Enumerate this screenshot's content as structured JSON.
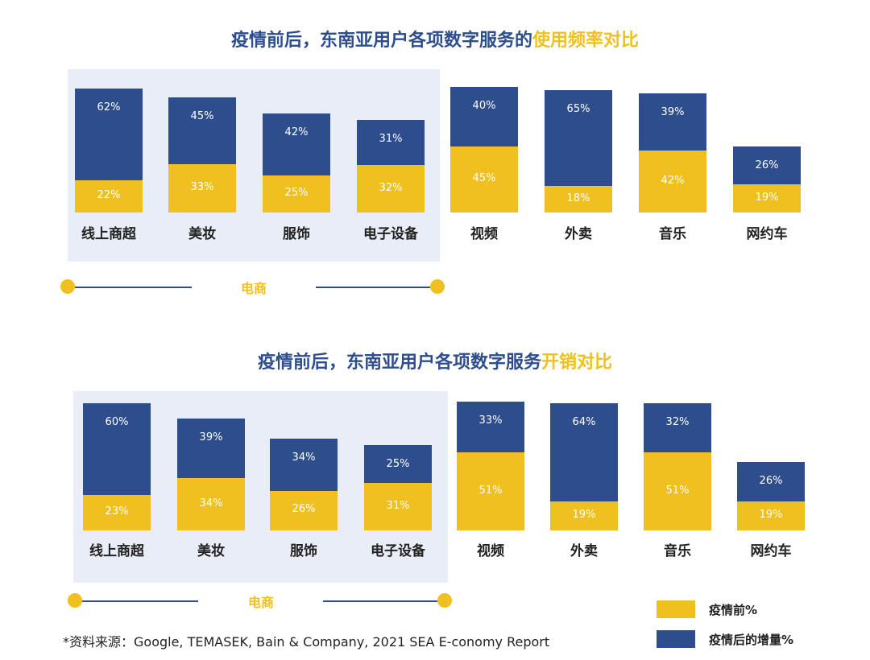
{
  "colors": {
    "before": "#f0c020",
    "increase": "#2d4d8c",
    "title": "#2d4d8c",
    "panel": "#e9edf7"
  },
  "chart_data": [
    {
      "type": "bar",
      "stacked": true,
      "title": "疫情前后，东南亚用户各项数字服务的",
      "title_highlight": "使用频率对比",
      "categories": [
        "线上商超",
        "美妆",
        "服饰",
        "电子设备",
        "视频",
        "外卖",
        "音乐",
        "网约车"
      ],
      "series": [
        {
          "name": "疫情前%",
          "values": [
            22,
            33,
            25,
            32,
            45,
            18,
            42,
            19
          ],
          "labels": [
            "22%",
            "33%",
            "25%",
            "32%",
            "45%",
            "18%",
            "42%",
            "19%"
          ]
        },
        {
          "name": "疫情后的增量%",
          "values": [
            62,
            45,
            42,
            31,
            40,
            65,
            39,
            26
          ],
          "labels": [
            "62%",
            "45%",
            "42%",
            "31%",
            "40%",
            "65%",
            "39%",
            "26%"
          ]
        }
      ],
      "group_label": "电商",
      "group_categories": [
        "线上商超",
        "美妆",
        "服饰",
        "电子设备"
      ]
    },
    {
      "type": "bar",
      "stacked": true,
      "title": "疫情前后，东南亚用户各项数字服务",
      "title_highlight": "开销对比",
      "categories": [
        "线上商超",
        "美妆",
        "服饰",
        "电子设备",
        "视频",
        "外卖",
        "音乐",
        "网约车"
      ],
      "series": [
        {
          "name": "疫情前%",
          "values": [
            23,
            34,
            26,
            31,
            51,
            19,
            51,
            19
          ],
          "labels": [
            "23%",
            "34%",
            "26%",
            "31%",
            "51%",
            "19%",
            "51%",
            "19%"
          ]
        },
        {
          "name": "疫情后的增量%",
          "values": [
            60,
            39,
            34,
            25,
            33,
            64,
            32,
            26
          ],
          "labels": [
            "60%",
            "39%",
            "34%",
            "25%",
            "33%",
            "64%",
            "32%",
            "26%"
          ]
        }
      ],
      "group_label": "电商",
      "group_categories": [
        "线上商超",
        "美妆",
        "服饰",
        "电子设备"
      ]
    }
  ],
  "legend": {
    "before": "疫情前%",
    "increase": "疫情后的增量%"
  },
  "source": "*资料来源：Google, TEMASEK, Bain & Company, 2021 SEA E-conomy Report"
}
